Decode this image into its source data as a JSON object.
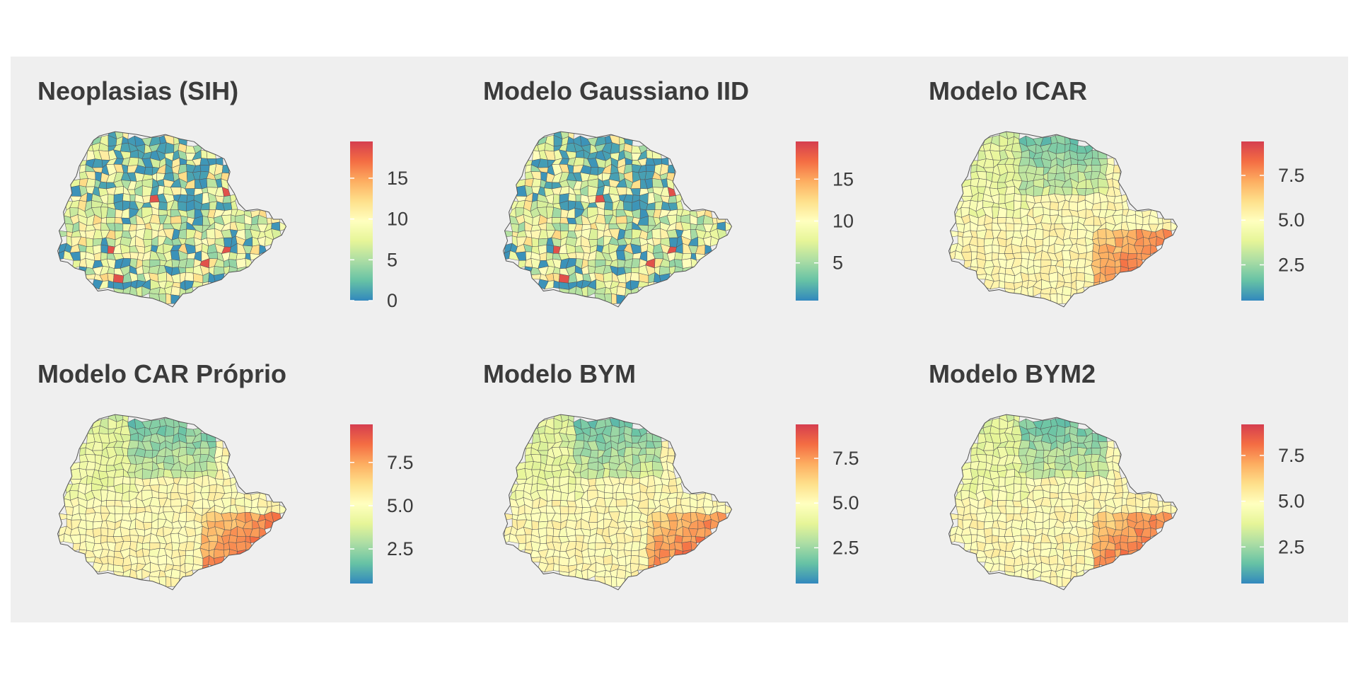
{
  "figure": {
    "panels": [
      {
        "title": "Neoplasias (SIH)",
        "scale_min": 0,
        "scale_max": 19.5,
        "ticks": [
          "0",
          "5",
          "10",
          "15"
        ],
        "tick_values": [
          0,
          5,
          10,
          15
        ],
        "pattern": "observed",
        "seed": 11
      },
      {
        "title": "Modelo Gaussiano IID",
        "scale_min": 0.5,
        "scale_max": 19.5,
        "ticks": [
          "5",
          "10",
          "15"
        ],
        "tick_values": [
          5,
          10,
          15
        ],
        "pattern": "observed",
        "seed": 11
      },
      {
        "title": "Modelo ICAR",
        "scale_min": 0.5,
        "scale_max": 9.4,
        "ticks": [
          "2.5",
          "5.0",
          "7.5"
        ],
        "tick_values": [
          2.5,
          5.0,
          7.5
        ],
        "pattern": "smooth",
        "seed": 23
      },
      {
        "title": "Modelo CAR Próprio",
        "scale_min": 0.5,
        "scale_max": 9.7,
        "ticks": [
          "2.5",
          "5.0",
          "7.5"
        ],
        "tick_values": [
          2.5,
          5.0,
          7.5
        ],
        "pattern": "smooth",
        "seed": 31
      },
      {
        "title": "Modelo BYM",
        "scale_min": 0.5,
        "scale_max": 9.4,
        "ticks": [
          "2.5",
          "5.0",
          "7.5"
        ],
        "tick_values": [
          2.5,
          5.0,
          7.5
        ],
        "pattern": "smooth",
        "seed": 37
      },
      {
        "title": "Modelo BYM2",
        "scale_min": 0.5,
        "scale_max": 9.2,
        "ticks": [
          "2.5",
          "5.0",
          "7.5"
        ],
        "tick_values": [
          2.5,
          5.0,
          7.5
        ],
        "pattern": "smooth",
        "seed": 41
      }
    ],
    "colors": {
      "palette": [
        "#3288bd",
        "#66c2a5",
        "#abdda4",
        "#e6f598",
        "#ffffbf",
        "#fee08b",
        "#fdae61",
        "#f46d43",
        "#d53e4f"
      ],
      "background": "#efefef",
      "border": "#555555"
    }
  }
}
